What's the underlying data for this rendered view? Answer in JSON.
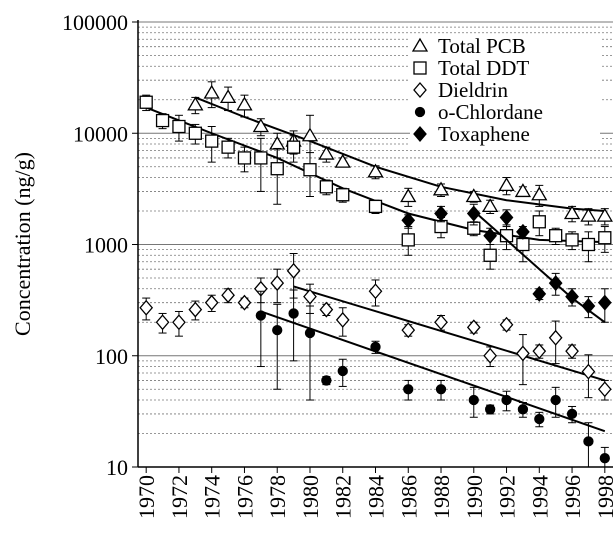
{
  "chart_data": {
    "type": "scatter",
    "y_label": "Concentration (ng/g)",
    "log_y": true,
    "grid": true,
    "minor_grid": true,
    "legend_position": "upper right",
    "xlim": [
      1969.5,
      1998.5
    ],
    "xticks": [
      1970,
      1972,
      1974,
      1976,
      1978,
      1980,
      1982,
      1984,
      1986,
      1988,
      1990,
      1992,
      1994,
      1996,
      1998
    ],
    "ylim": [
      10,
      100000
    ],
    "yticks": [
      10,
      100,
      1000,
      10000,
      100000
    ],
    "series": [
      {
        "name": "Total PCB",
        "marker": "triangle",
        "filled": false,
        "color": "#000000",
        "x": [
          1973,
          1974,
          1975,
          1976,
          1977,
          1978,
          1979,
          1980,
          1981,
          1982,
          1984,
          1986,
          1988,
          1990,
          1991,
          1992,
          1993,
          1994,
          1996,
          1997,
          1998
        ],
        "values": [
          18000,
          23000,
          21000,
          18000,
          11500,
          8000,
          8500,
          9500,
          6500,
          5500,
          4500,
          2700,
          3100,
          2700,
          2200,
          3400,
          3000,
          2800,
          1900,
          1800,
          1800
        ],
        "errors": [
          3000,
          6000,
          5000,
          4000,
          2000,
          2000,
          2000,
          5000,
          1000,
          500,
          600,
          500,
          400,
          300,
          300,
          600,
          300,
          600,
          300,
          300,
          300
        ],
        "trend_x": [
          1973,
          1976,
          1980,
          1984,
          1988,
          1992,
          1996,
          1998
        ],
        "trend_values": [
          21000,
          14000,
          8500,
          5000,
          3300,
          2500,
          2100,
          2000
        ]
      },
      {
        "name": "Total DDT",
        "marker": "square",
        "filled": false,
        "color": "#000000",
        "x": [
          1970,
          1971,
          1972,
          1973,
          1974,
          1975,
          1976,
          1977,
          1978,
          1979,
          1980,
          1981,
          1982,
          1984,
          1986,
          1988,
          1990,
          1991,
          1992,
          1993,
          1994,
          1995,
          1996,
          1997,
          1998
        ],
        "values": [
          19000,
          13000,
          11500,
          10000,
          8500,
          7500,
          6000,
          6000,
          4800,
          7500,
          4700,
          3300,
          2800,
          2200,
          1100,
          1450,
          1400,
          800,
          1200,
          1000,
          1600,
          1200,
          1100,
          1000,
          1150
        ],
        "errors": [
          3000,
          2000,
          3000,
          2000,
          3000,
          1500,
          1500,
          3000,
          2500,
          2000,
          2000,
          500,
          400,
          300,
          300,
          300,
          200,
          200,
          300,
          300,
          400,
          200,
          200,
          300,
          300
        ],
        "trend_x": [
          1970,
          1974,
          1978,
          1982,
          1986,
          1990,
          1994,
          1998
        ],
        "trend_values": [
          17000,
          10000,
          6000,
          3200,
          1900,
          1350,
          1100,
          1050
        ]
      },
      {
        "name": "Dieldrin",
        "marker": "diamond",
        "filled": false,
        "color": "#000000",
        "x": [
          1970,
          1971,
          1972,
          1973,
          1974,
          1975,
          1976,
          1977,
          1978,
          1979,
          1980,
          1981,
          1982,
          1984,
          1986,
          1988,
          1990,
          1991,
          1992,
          1993,
          1994,
          1995,
          1996,
          1997,
          1998
        ],
        "values": [
          270,
          200,
          200,
          260,
          300,
          350,
          300,
          400,
          450,
          580,
          340,
          260,
          210,
          380,
          170,
          200,
          180,
          100,
          190,
          105,
          110,
          145,
          110,
          72,
          50
        ],
        "errors": [
          60,
          40,
          50,
          50,
          50,
          50,
          30,
          100,
          150,
          250,
          100,
          30,
          60,
          100,
          20,
          30,
          20,
          20,
          20,
          50,
          15,
          60,
          15,
          30,
          10
        ],
        "trend_x": [
          1979,
          1998
        ],
        "trend_values": [
          420,
          60
        ]
      },
      {
        "name": "o-Chlordane",
        "marker": "circle",
        "filled": true,
        "color": "#000000",
        "x": [
          1977,
          1978,
          1979,
          1980,
          1981,
          1982,
          1984,
          1986,
          1988,
          1990,
          1991,
          1992,
          1993,
          1994,
          1995,
          1996,
          1997,
          1998
        ],
        "values": [
          230,
          170,
          240,
          160,
          60,
          73,
          120,
          50,
          50,
          40,
          33,
          40,
          33,
          27,
          40,
          30,
          17,
          12
        ],
        "errors": [
          150,
          120,
          150,
          120,
          5,
          20,
          15,
          10,
          10,
          12,
          3,
          8,
          5,
          4,
          12,
          5,
          8,
          3
        ],
        "trend_x": [
          1977,
          1998
        ],
        "trend_values": [
          250,
          21
        ]
      },
      {
        "name": "Toxaphene",
        "marker": "diamond",
        "filled": true,
        "color": "#000000",
        "x": [
          1986,
          1988,
          1990,
          1991,
          1992,
          1993,
          1994,
          1995,
          1996,
          1997,
          1998
        ],
        "values": [
          1650,
          1900,
          1900,
          1200,
          1750,
          1300,
          360,
          450,
          340,
          280,
          300
        ],
        "errors": [
          200,
          300,
          400,
          200,
          300,
          150,
          40,
          100,
          60,
          60,
          100
        ],
        "trend_x": [
          1990,
          1992,
          1994,
          1996,
          1998
        ],
        "trend_values": [
          2000,
          1100,
          600,
          330,
          200
        ]
      }
    ]
  }
}
